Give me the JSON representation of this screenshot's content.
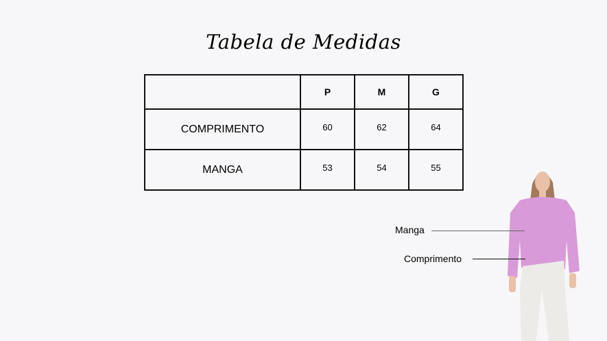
{
  "title": "Tabela de Medidas",
  "table": {
    "headers": [
      "",
      "P",
      "M",
      "G"
    ],
    "rows": [
      {
        "label": "COMPRIMENTO",
        "values": [
          "60",
          "62",
          "64"
        ]
      },
      {
        "label": "MANGA",
        "values": [
          "53",
          "54",
          "55"
        ]
      }
    ]
  },
  "callouts": {
    "manga": "Manga",
    "comprimento": "Comprimento"
  },
  "colors": {
    "sweater": "#d99ad9",
    "pants": "#ecebe8",
    "background": "#f7f7f9"
  }
}
